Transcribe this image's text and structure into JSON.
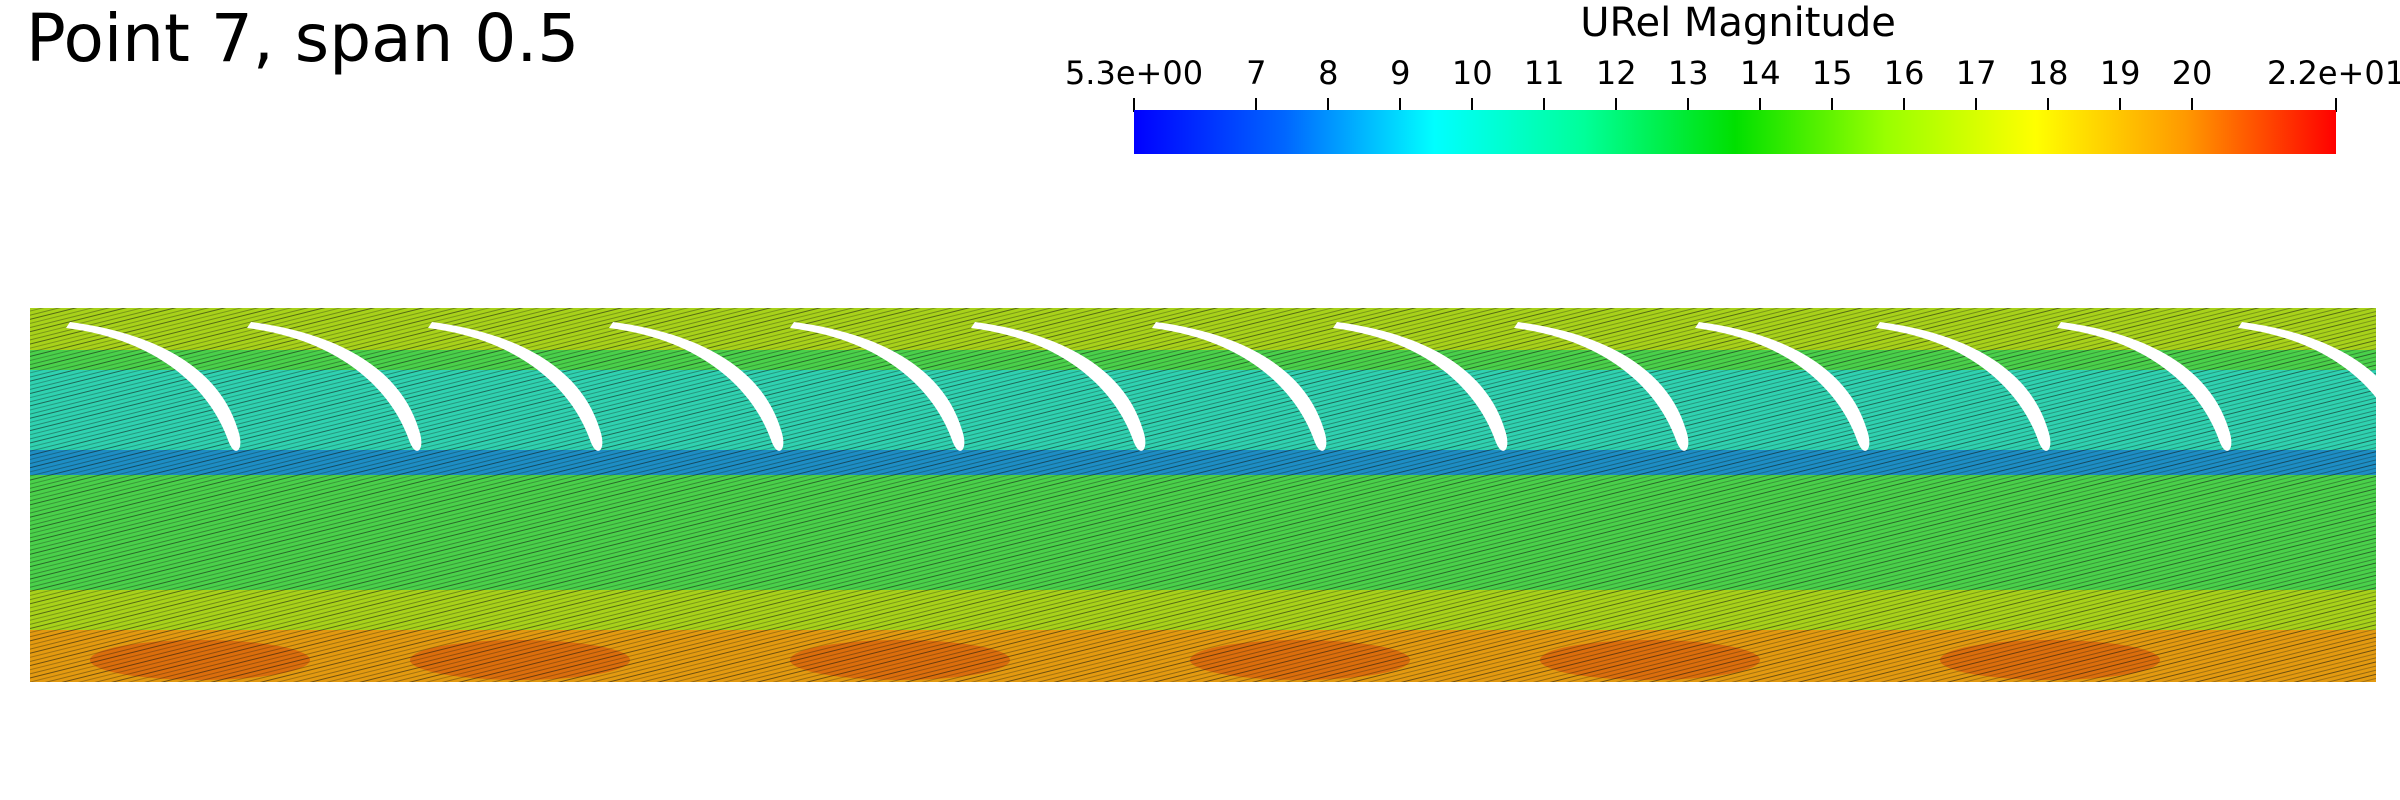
{
  "title": "Point 7, span 0.5",
  "colorbar": {
    "title": "URel Magnitude",
    "min_label": "5.3e+00",
    "max_label": "2.2e+01",
    "min": 5.3,
    "max": 22,
    "ticks": [
      {
        "value": 5.3,
        "label": "5.3e+00"
      },
      {
        "value": 7,
        "label": "7"
      },
      {
        "value": 8,
        "label": "8"
      },
      {
        "value": 9,
        "label": "9"
      },
      {
        "value": 10,
        "label": "10"
      },
      {
        "value": 11,
        "label": "11"
      },
      {
        "value": 12,
        "label": "12"
      },
      {
        "value": 13,
        "label": "13"
      },
      {
        "value": 14,
        "label": "14"
      },
      {
        "value": 15,
        "label": "15"
      },
      {
        "value": 16,
        "label": "16"
      },
      {
        "value": 17,
        "label": "17"
      },
      {
        "value": 18,
        "label": "18"
      },
      {
        "value": 19,
        "label": "19"
      },
      {
        "value": 20,
        "label": "20"
      },
      {
        "value": 22,
        "label": "2.2e+01"
      }
    ],
    "colors": [
      "#0000ff",
      "#0066ff",
      "#00ffff",
      "#00ff99",
      "#00e000",
      "#99ff00",
      "#ffff00",
      "#ff9900",
      "#ff0000"
    ]
  },
  "field": {
    "blade_count": 13,
    "colors": {
      "low": "#1d8ec4",
      "mid_low": "#2fd2b0",
      "mid": "#4ad14a",
      "mid_high": "#a8d21a",
      "high": "#e39a10",
      "peak": "#d64a0a",
      "streak": "#111111"
    }
  }
}
